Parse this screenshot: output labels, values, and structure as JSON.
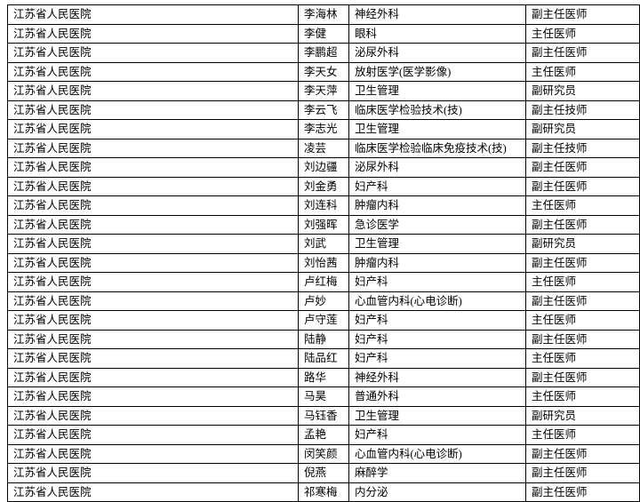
{
  "table": {
    "rows": [
      [
        "江苏省人民医院",
        "李海林",
        "神经外科",
        "副主任医师"
      ],
      [
        "江苏省人民医院",
        "李健",
        "眼科",
        "主任医师"
      ],
      [
        "江苏省人民医院",
        "李鹏超",
        "泌尿外科",
        "副主任医师"
      ],
      [
        "江苏省人民医院",
        "李天女",
        "放射医学(医学影像)",
        "主任医师"
      ],
      [
        "江苏省人民医院",
        "李天萍",
        "卫生管理",
        "副研究员"
      ],
      [
        "江苏省人民医院",
        "李云飞",
        "临床医学检验技术(技)",
        "副主任技师"
      ],
      [
        "江苏省人民医院",
        "李志光",
        "卫生管理",
        "副研究员"
      ],
      [
        "江苏省人民医院",
        "凌芸",
        "临床医学检验临床免疫技术(技)",
        "副主任技师"
      ],
      [
        "江苏省人民医院",
        "刘边疆",
        "泌尿外科",
        "副主任医师"
      ],
      [
        "江苏省人民医院",
        "刘金勇",
        "妇产科",
        "副主任医师"
      ],
      [
        "江苏省人民医院",
        "刘连科",
        "肿瘤内科",
        "主任医师"
      ],
      [
        "江苏省人民医院",
        "刘强晖",
        "急诊医学",
        "副主任医师"
      ],
      [
        "江苏省人民医院",
        "刘武",
        "卫生管理",
        "副研究员"
      ],
      [
        "江苏省人民医院",
        "刘怡茜",
        "肿瘤内科",
        "副主任医师"
      ],
      [
        "江苏省人民医院",
        "卢红梅",
        "妇产科",
        "主任医师"
      ],
      [
        "江苏省人民医院",
        "卢妙",
        "心血管内科(心电诊断)",
        "副主任医师"
      ],
      [
        "江苏省人民医院",
        "卢守莲",
        "妇产科",
        "主任医师"
      ],
      [
        "江苏省人民医院",
        "陆静",
        "妇产科",
        "副主任医师"
      ],
      [
        "江苏省人民医院",
        "陆品红",
        "妇产科",
        "主任医师"
      ],
      [
        "江苏省人民医院",
        "路华",
        "神经外科",
        "副主任医师"
      ],
      [
        "江苏省人民医院",
        "马昊",
        "普通外科",
        "主任医师"
      ],
      [
        "江苏省人民医院",
        "马钰香",
        "卫生管理",
        "副研究员"
      ],
      [
        "江苏省人民医院",
        "孟艳",
        "妇产科",
        "主任医师"
      ],
      [
        "江苏省人民医院",
        "闵笑颜",
        "心血管内科(心电诊断)",
        "副主任医师"
      ],
      [
        "江苏省人民医院",
        "倪燕",
        "麻醉学",
        "副主任医师"
      ],
      [
        "江苏省人民医院",
        "祁寒梅",
        "内分泌",
        "副主任医师"
      ]
    ]
  }
}
